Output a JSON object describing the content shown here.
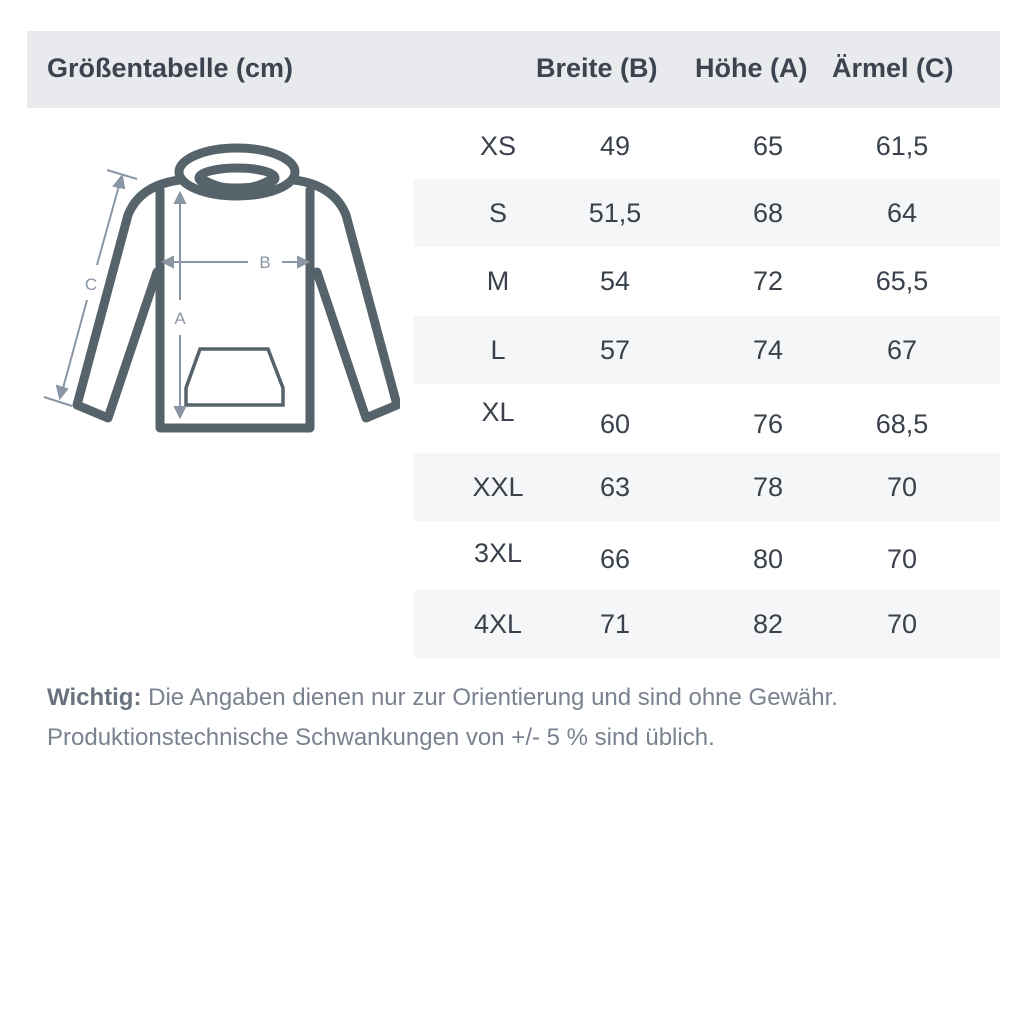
{
  "header": {
    "title": "Größentabelle (cm)",
    "columns": [
      "Breite (B)",
      "Höhe (A)",
      "Ärmel (C)"
    ]
  },
  "diagram": {
    "labels": {
      "a": "A",
      "b": "B",
      "c": "C"
    },
    "stroke_color": "#56636b",
    "arrow_color": "#8a96a3"
  },
  "rows": [
    {
      "size": "XS",
      "breite": "49",
      "hoehe": "65",
      "aermel": "61,5"
    },
    {
      "size": "S",
      "breite": "51,5",
      "hoehe": "68",
      "aermel": "64"
    },
    {
      "size": "M",
      "breite": "54",
      "hoehe": "72",
      "aermel": "65,5"
    },
    {
      "size": "L",
      "breite": "57",
      "hoehe": "74",
      "aermel": "67"
    },
    {
      "size": "XL",
      "breite": "60",
      "hoehe": "76",
      "aermel": "68,5"
    },
    {
      "size": "XXL",
      "breite": "63",
      "hoehe": "78",
      "aermel": "70"
    },
    {
      "size": "3XL",
      "breite": "66",
      "hoehe": "80",
      "aermel": "70"
    },
    {
      "size": "4XL",
      "breite": "71",
      "hoehe": "82",
      "aermel": "70"
    }
  ],
  "note": {
    "label": "Wichtig:",
    "line1": " Die Angaben dienen nur zur Orientierung und sind ohne Gewähr.",
    "line2": "Produktionstechnische Schwankungen von +/- 5 % sind üblich."
  },
  "colors": {
    "header_bg": "#e9eaee",
    "stripe_bg": "#f5f6f8",
    "text": "#3a414b",
    "note_text": "#7a8290"
  }
}
